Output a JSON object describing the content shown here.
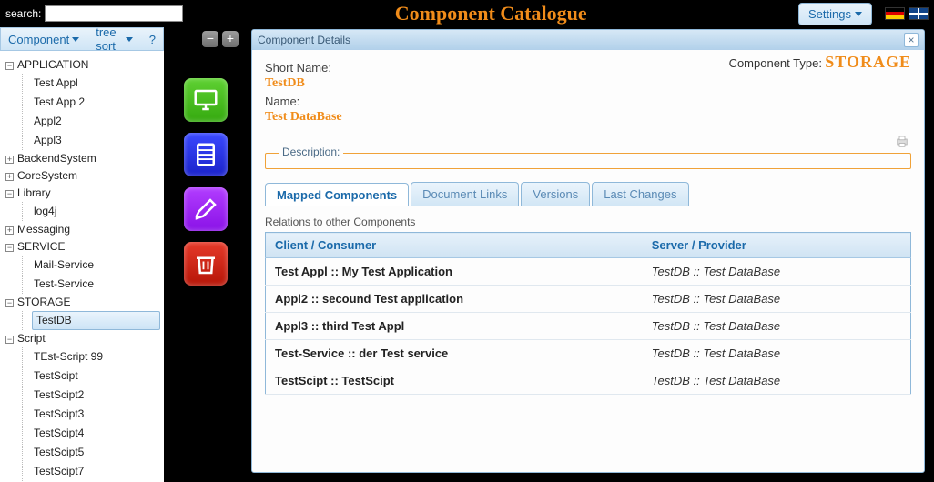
{
  "top": {
    "search_label": "search:",
    "search_value": "",
    "title": "Component Catalogue",
    "settings_label": "Settings"
  },
  "left_toolbar": {
    "component_label": "Component",
    "treesort_label": "tree sort",
    "help_label": "?"
  },
  "tree": [
    {
      "label": "APPLICATION",
      "expanded": true,
      "children": [
        {
          "label": "Test Appl"
        },
        {
          "label": "Test App 2"
        },
        {
          "label": "Appl2"
        },
        {
          "label": "Appl3"
        }
      ]
    },
    {
      "label": "BackendSystem",
      "expanded": false,
      "children": []
    },
    {
      "label": "CoreSystem",
      "expanded": false,
      "children": []
    },
    {
      "label": "Library",
      "expanded": true,
      "children": [
        {
          "label": "log4j"
        }
      ]
    },
    {
      "label": "Messaging",
      "expanded": false,
      "children": []
    },
    {
      "label": "SERVICE",
      "expanded": true,
      "children": [
        {
          "label": "Mail-Service"
        },
        {
          "label": "Test-Service"
        }
      ]
    },
    {
      "label": "STORAGE",
      "expanded": true,
      "children": [
        {
          "label": "TestDB",
          "selected": true
        }
      ]
    },
    {
      "label": "Script",
      "expanded": true,
      "children": [
        {
          "label": "TEst-Script 99"
        },
        {
          "label": "TestScipt"
        },
        {
          "label": "TestScipt2"
        },
        {
          "label": "TestScipt3"
        },
        {
          "label": "TestScipt4"
        },
        {
          "label": "TestScipt5"
        },
        {
          "label": "TestScipt7"
        }
      ]
    }
  ],
  "detail": {
    "panel_title": "Component Details",
    "shortname_label": "Short Name:",
    "shortname_value": "TestDB",
    "name_label": "Name:",
    "name_value": "Test DataBase",
    "ctype_label": "Component Type:",
    "ctype_value": "STORAGE",
    "description_label": "Description:",
    "tabs": [
      {
        "label": "Mapped Components",
        "active": true
      },
      {
        "label": "Document Links"
      },
      {
        "label": "Versions"
      },
      {
        "label": "Last Changes"
      }
    ],
    "relations_title": "Relations to other Components",
    "relations_columns": [
      "Client / Consumer",
      "Server / Provider"
    ],
    "relations_rows": [
      [
        "Test Appl :: My Test Application",
        "TestDB :: Test DataBase"
      ],
      [
        "Appl2 :: secound Test application",
        "TestDB :: Test DataBase"
      ],
      [
        "Appl3 :: third Test Appl",
        "TestDB :: Test DataBase"
      ],
      [
        "Test-Service :: der Test service",
        "TestDB :: Test DataBase"
      ],
      [
        "TestScipt :: TestScipt",
        "TestDB :: Test DataBase"
      ]
    ]
  },
  "colors": {
    "accent_orange": "#f08c1a",
    "panel_border": "#8fb8d9",
    "link_blue": "#1b6aaa"
  }
}
